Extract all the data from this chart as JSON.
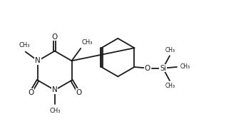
{
  "background_color": "#ffffff",
  "line_color": "#1a1a1a",
  "line_width": 1.3,
  "font_size": 6.5,
  "fig_width": 3.24,
  "fig_height": 1.88,
  "dpi": 100,
  "xlim": [
    0,
    9.5
  ],
  "ylim": [
    0,
    5.5
  ]
}
